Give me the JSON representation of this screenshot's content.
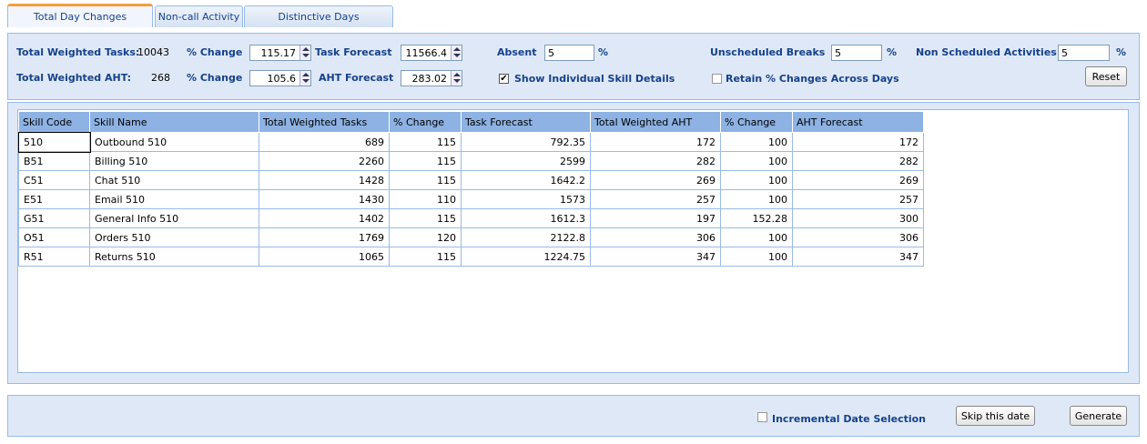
{
  "tabs": [
    "Total Day Changes",
    "Non-call Activity",
    "Distinctive Days"
  ],
  "controls": {
    "total_weighted_tasks_label": "Total Weighted Tasks:",
    "total_weighted_tasks": 10043,
    "tasks_change_label": "% Change",
    "tasks_change": 115.17,
    "task_forecast_label": "Task Forecast",
    "task_forecast": 11566.4,
    "absent_label": "Absent",
    "absent": 5,
    "absent_unit": "%",
    "unscheduled_breaks_label": "Unscheduled Breaks",
    "unscheduled_breaks": 5,
    "unscheduled_breaks_unit": "%",
    "non_scheduled_label": "Non Scheduled Activities",
    "non_scheduled": 5,
    "non_scheduled_unit": "%",
    "total_weighted_aht_label": "Total Weighted AHT:",
    "total_weighted_aht": 268,
    "aht_change_label": "% Change",
    "aht_change": 105.6,
    "aht_forecast_label": "AHT Forecast",
    "aht_forecast": 283.02,
    "show_skill_details": "Show Individual Skill Details",
    "retain_changes": "Retain % Changes Across Days",
    "reset": "Reset"
  },
  "table": {
    "columns": [
      "Skill Code",
      "Skill Name",
      "Total Weighted Tasks",
      "% Change",
      "Task Forecast",
      "Total Weighted AHT",
      "% Change",
      "AHT Forecast"
    ],
    "rows": [
      [
        "510",
        "Outbound 510",
        689,
        115,
        792.35,
        172,
        100,
        172
      ],
      [
        "B51",
        "Billing 510",
        2260,
        115,
        2599,
        282,
        100,
        282
      ],
      [
        "C51",
        "Chat 510",
        1428,
        115,
        1642.2,
        269,
        100,
        269
      ],
      [
        "E51",
        "Email 510",
        1430,
        110,
        1573,
        257,
        100,
        257
      ],
      [
        "G51",
        "General Info 510",
        1402,
        115,
        1612.3,
        197,
        152.28,
        300
      ],
      [
        "O51",
        "Orders 510",
        1769,
        120,
        2122.8,
        306,
        100,
        306
      ],
      [
        "R51",
        "Returns 510",
        1065,
        115,
        1224.75,
        347,
        100,
        347
      ]
    ]
  },
  "footer": {
    "incremental_date": "Incremental Date Selection",
    "skip": "Skip this date",
    "generate": "Generate"
  }
}
